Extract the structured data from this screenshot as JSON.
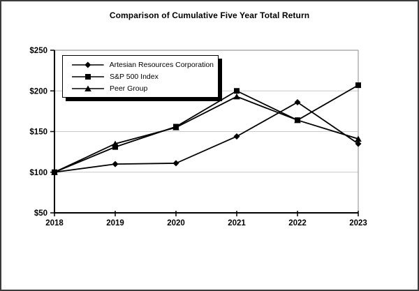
{
  "window": {
    "background_color": "#ffffff",
    "border_color": "#3c3c3c"
  },
  "chart_data": {
    "type": "line",
    "title": "Comparison of Cumulative Five Year Total Return",
    "categories": [
      "2018",
      "2019",
      "2020",
      "2021",
      "2022",
      "2023"
    ],
    "series": [
      {
        "name": "Artesian Resources Corporation",
        "marker": "diamond",
        "color": "#000000",
        "values": [
          100,
          110,
          111,
          144,
          186,
          135
        ]
      },
      {
        "name": "S&P 500 Index",
        "marker": "square",
        "color": "#000000",
        "values": [
          100,
          131,
          156,
          200,
          164,
          207
        ]
      },
      {
        "name": "Peer Group",
        "marker": "triangle",
        "color": "#000000",
        "values": [
          100,
          135,
          155,
          193,
          164,
          141
        ]
      }
    ],
    "xlabel": "",
    "ylabel": "",
    "ylim": [
      50,
      250
    ],
    "yticks": [
      50,
      100,
      150,
      200,
      250
    ],
    "ytick_labels": [
      "$50",
      "$100",
      "$150",
      "$200",
      "$250"
    ],
    "grid": true,
    "gridline_color": "#c9c9c9",
    "plot_border_color": "#9c9c9c",
    "axis_color": "#000000",
    "legend_position": "top-left-inside"
  }
}
